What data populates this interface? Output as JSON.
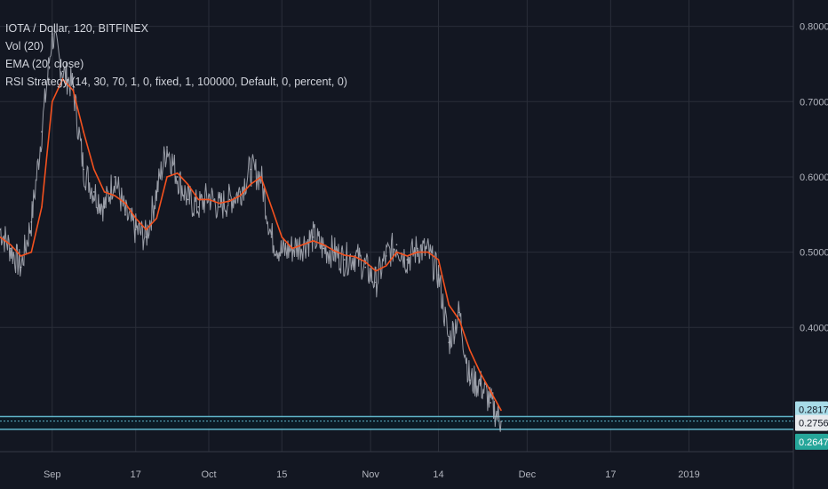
{
  "legend": {
    "symbol": "IOTA / Dollar, 120, BITFINEX",
    "vol": "Vol (20)",
    "ema": "EMA (20, close)",
    "strategy": "RSI Strategy (14, 30, 70, 1, 0, fixed, 1, 100000, Default, 0, percent, 0)"
  },
  "colors": {
    "background": "#131722",
    "grid": "#2a2e39",
    "price": "#b2b5be",
    "ema": "#f4511e",
    "strategy_line": "#5fb4c8",
    "badge_top": "#a8dce8",
    "badge_current": "#e8eaed",
    "badge_bottom": "#26a69a"
  },
  "chart_data": {
    "type": "line",
    "title": "IOTA / Dollar, 120, BITFINEX",
    "xlabel": "",
    "ylabel": "",
    "ylim": [
      0.235,
      0.835
    ],
    "xlim": [
      "2018-08-22",
      "2019-01-21"
    ],
    "grid": true,
    "x_ticks": [
      {
        "date": "2018-09-01",
        "label": "Sep"
      },
      {
        "date": "2018-09-17",
        "label": "17"
      },
      {
        "date": "2018-10-01",
        "label": "Oct"
      },
      {
        "date": "2018-10-15",
        "label": "15"
      },
      {
        "date": "2018-11-01",
        "label": "Nov"
      },
      {
        "date": "2018-11-14",
        "label": "14"
      },
      {
        "date": "2018-12-01",
        "label": "Dec"
      },
      {
        "date": "2018-12-17",
        "label": "17"
      },
      {
        "date": "2019-01-01",
        "label": "2019"
      }
    ],
    "y_ticks": [
      {
        "value": 0.8,
        "label": "0.8000"
      },
      {
        "value": 0.7,
        "label": "0.7000"
      },
      {
        "value": 0.6,
        "label": "0.6000"
      },
      {
        "value": 0.5,
        "label": "0.5000"
      },
      {
        "value": 0.4,
        "label": "0.4000"
      }
    ],
    "series": [
      {
        "x": [
          "2018-08-22",
          "2018-08-24",
          "2018-08-26",
          "2018-08-28",
          "2018-08-30",
          "2018-09-01",
          "2018-09-03",
          "2018-09-05",
          "2018-09-07",
          "2018-09-09",
          "2018-09-11",
          "2018-09-13",
          "2018-09-15",
          "2018-09-17",
          "2018-09-19",
          "2018-09-21",
          "2018-09-23",
          "2018-09-25",
          "2018-09-27",
          "2018-09-29",
          "2018-10-01",
          "2018-10-03",
          "2018-10-05",
          "2018-10-07",
          "2018-10-09",
          "2018-10-11",
          "2018-10-13",
          "2018-10-15",
          "2018-10-17",
          "2018-10-19",
          "2018-10-21",
          "2018-10-23",
          "2018-10-25",
          "2018-10-27",
          "2018-10-29",
          "2018-10-31",
          "2018-11-02",
          "2018-11-04",
          "2018-11-06",
          "2018-11-08",
          "2018-11-10",
          "2018-11-12",
          "2018-11-14",
          "2018-11-16",
          "2018-11-18",
          "2018-11-20",
          "2018-11-22",
          "2018-11-24",
          "2018-11-26"
        ],
        "values": [
          0.53,
          0.505,
          0.48,
          0.54,
          0.66,
          0.79,
          0.74,
          0.72,
          0.61,
          0.58,
          0.56,
          0.6,
          0.55,
          0.53,
          0.52,
          0.58,
          0.64,
          0.6,
          0.57,
          0.56,
          0.575,
          0.56,
          0.57,
          0.58,
          0.61,
          0.6,
          0.52,
          0.5,
          0.505,
          0.51,
          0.52,
          0.505,
          0.5,
          0.49,
          0.495,
          0.48,
          0.46,
          0.495,
          0.51,
          0.49,
          0.505,
          0.5,
          0.47,
          0.38,
          0.42,
          0.33,
          0.325,
          0.3,
          0.275
        ]
      },
      {
        "x": [
          "2018-08-22",
          "2018-08-24",
          "2018-08-26",
          "2018-08-28",
          "2018-08-30",
          "2018-09-01",
          "2018-09-03",
          "2018-09-05",
          "2018-09-07",
          "2018-09-09",
          "2018-09-11",
          "2018-09-13",
          "2018-09-15",
          "2018-09-17",
          "2018-09-19",
          "2018-09-21",
          "2018-09-23",
          "2018-09-25",
          "2018-09-27",
          "2018-09-29",
          "2018-10-01",
          "2018-10-03",
          "2018-10-05",
          "2018-10-07",
          "2018-10-09",
          "2018-10-11",
          "2018-10-13",
          "2018-10-15",
          "2018-10-17",
          "2018-10-19",
          "2018-10-21",
          "2018-10-23",
          "2018-10-25",
          "2018-10-27",
          "2018-10-29",
          "2018-10-31",
          "2018-11-02",
          "2018-11-04",
          "2018-11-06",
          "2018-11-08",
          "2018-11-10",
          "2018-11-12",
          "2018-11-14",
          "2018-11-16",
          "2018-11-18",
          "2018-11-20",
          "2018-11-22",
          "2018-11-24",
          "2018-11-26"
        ],
        "values": [
          0.52,
          0.51,
          0.495,
          0.5,
          0.56,
          0.7,
          0.73,
          0.715,
          0.66,
          0.61,
          0.58,
          0.575,
          0.565,
          0.545,
          0.53,
          0.545,
          0.6,
          0.605,
          0.59,
          0.57,
          0.57,
          0.565,
          0.568,
          0.575,
          0.59,
          0.6,
          0.56,
          0.52,
          0.505,
          0.51,
          0.515,
          0.51,
          0.502,
          0.496,
          0.494,
          0.487,
          0.475,
          0.482,
          0.5,
          0.495,
          0.5,
          0.5,
          0.49,
          0.43,
          0.41,
          0.37,
          0.34,
          0.315,
          0.29
        ]
      }
    ],
    "horizontal_levels": [
      {
        "value": 0.2817,
        "label": "0.2817"
      },
      {
        "value": 0.2756,
        "label": "0.2756"
      },
      {
        "value": 0.2647,
        "label": "0.2647"
      }
    ]
  }
}
